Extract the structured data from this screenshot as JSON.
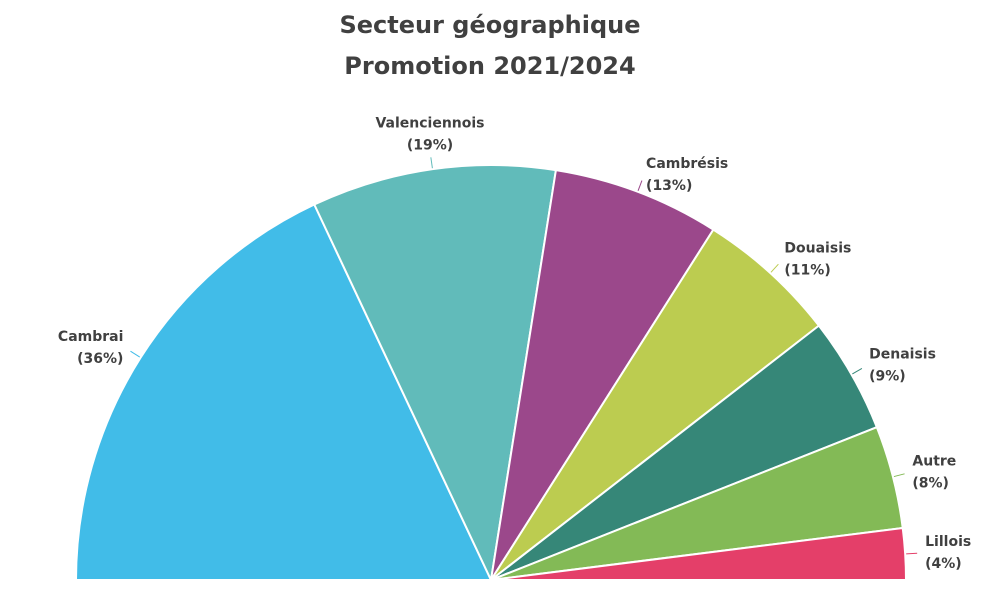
{
  "chart_data": {
    "type": "pie",
    "subtype": "semi-circle",
    "title": "Secteur géographique",
    "subtitle": "Promotion 2021/2024",
    "legend": "none",
    "data_labels": "outside with leader lines",
    "slices": [
      {
        "label": "Cambrai",
        "value": 36,
        "percent_label": "(36%)",
        "color": "#41BCE8"
      },
      {
        "label": "Valenciennois",
        "value": 19,
        "percent_label": "(19%)",
        "color": "#61BBBA"
      },
      {
        "label": "Cambrésis",
        "value": 13,
        "percent_label": "(13%)",
        "color": "#9B488B"
      },
      {
        "label": "Douaisis",
        "value": 11,
        "percent_label": "(11%)",
        "color": "#BCCC50"
      },
      {
        "label": "Denaisis",
        "value": 9,
        "percent_label": "(9%)",
        "color": "#368778"
      },
      {
        "label": "Autre",
        "value": 8,
        "percent_label": "(8%)",
        "color": "#83BA56"
      },
      {
        "label": "Lillois",
        "value": 4,
        "percent_label": "(4%)",
        "color": "#E43F69"
      }
    ]
  }
}
